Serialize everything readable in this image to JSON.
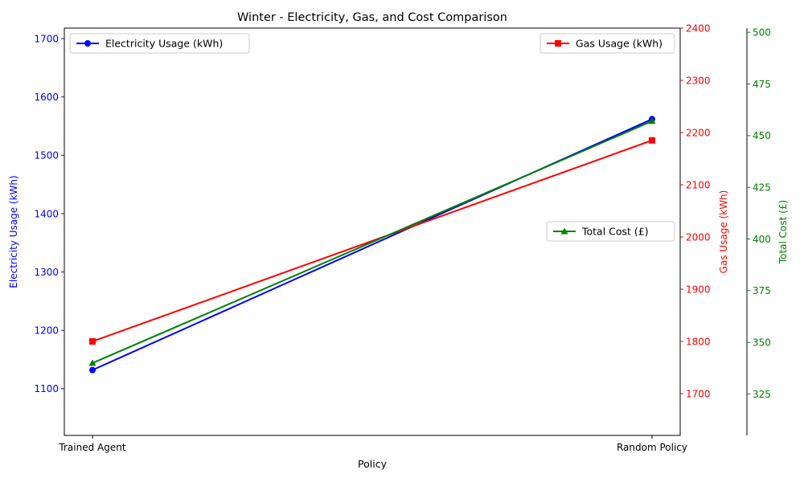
{
  "chart_data": {
    "type": "line",
    "title": "Winter - Electricity, Gas, and Cost Comparison",
    "xlabel": "Policy",
    "categories": [
      "Trained Agent",
      "Random Policy"
    ],
    "series": [
      {
        "name": "Electricity Usage (kWh)",
        "axis_label": "Electricity Usage (kWh)",
        "values": [
          1132,
          1562
        ],
        "color": "#0000ff",
        "marker": "circle",
        "ylim": [
          1020,
          1718
        ],
        "ticks": [
          1100,
          1200,
          1300,
          1400,
          1500,
          1600,
          1700
        ],
        "legend_position": "upper-left"
      },
      {
        "name": "Gas Usage (kWh)",
        "axis_label": "Gas Usage (kWh)",
        "values": [
          1800,
          2185
        ],
        "color": "#ff0000",
        "marker": "square",
        "ylim": [
          1620,
          2400
        ],
        "ticks": [
          1700,
          1800,
          1900,
          2000,
          2100,
          2200,
          2300,
          2400
        ],
        "legend_position": "upper-right"
      },
      {
        "name": "Total Cost (£)",
        "axis_label": "Total Cost (£)",
        "values": [
          340,
          457
        ],
        "color": "#008000",
        "marker": "triangle",
        "ylim": [
          305,
          502
        ],
        "ticks": [
          325,
          350,
          375,
          400,
          425,
          450,
          475,
          500
        ],
        "legend_position": "center-right"
      }
    ]
  }
}
